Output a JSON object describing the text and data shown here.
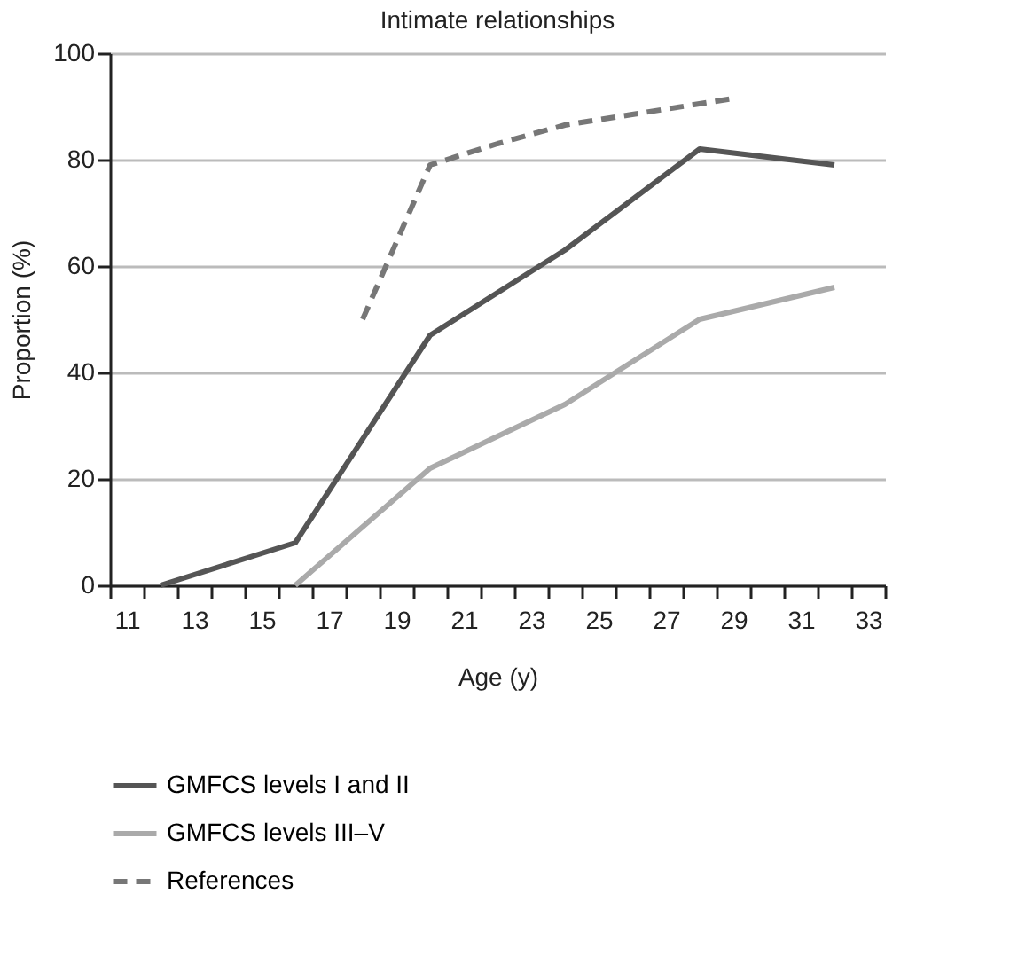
{
  "chart_data": {
    "type": "line",
    "title": "Intimate relationships",
    "xlabel": "Age (y)",
    "ylabel": "Proportion (%)",
    "xlim": [
      10.5,
      33.5
    ],
    "xticks": [
      {
        "value": 10.5,
        "label": null
      },
      {
        "value": 11,
        "label": "11"
      },
      {
        "value": 11.5,
        "label": null
      },
      {
        "value": 12.5,
        "label": null
      },
      {
        "value": 13,
        "label": "13"
      },
      {
        "value": 13.5,
        "label": null
      },
      {
        "value": 14.5,
        "label": null
      },
      {
        "value": 15,
        "label": "15"
      },
      {
        "value": 15.5,
        "label": null
      },
      {
        "value": 16.5,
        "label": null
      },
      {
        "value": 17,
        "label": "17"
      },
      {
        "value": 17.5,
        "label": null
      },
      {
        "value": 18.5,
        "label": null
      },
      {
        "value": 19,
        "label": "19"
      },
      {
        "value": 19.5,
        "label": null
      },
      {
        "value": 20.5,
        "label": null
      },
      {
        "value": 21,
        "label": "21"
      },
      {
        "value": 21.5,
        "label": null
      },
      {
        "value": 22.5,
        "label": null
      },
      {
        "value": 23,
        "label": "23"
      },
      {
        "value": 23.5,
        "label": null
      },
      {
        "value": 24.5,
        "label": null
      },
      {
        "value": 25,
        "label": "25"
      },
      {
        "value": 25.5,
        "label": null
      },
      {
        "value": 26.5,
        "label": null
      },
      {
        "value": 27,
        "label": "27"
      },
      {
        "value": 27.5,
        "label": null
      },
      {
        "value": 28.5,
        "label": null
      },
      {
        "value": 29,
        "label": "29"
      },
      {
        "value": 29.5,
        "label": null
      },
      {
        "value": 30.5,
        "label": null
      },
      {
        "value": 31,
        "label": "31"
      },
      {
        "value": 31.5,
        "label": null
      },
      {
        "value": 32.5,
        "label": null
      },
      {
        "value": 33,
        "label": "33"
      },
      {
        "value": 33.5,
        "label": null
      }
    ],
    "ylim": [
      0,
      100
    ],
    "yticks": [
      0,
      20,
      40,
      60,
      80,
      100
    ],
    "grid": "y",
    "legend": "bottom",
    "marker": "none",
    "series": [
      {
        "name": "GMFCS levels I and II",
        "color": "#555555",
        "line_style": "solid",
        "x": [
          12,
          16,
          20,
          24,
          28,
          32
        ],
        "values": [
          0,
          8,
          47,
          63,
          82,
          79
        ]
      },
      {
        "name": "GMFCS levels III–V",
        "color": "#aaaaaa",
        "line_style": "solid",
        "x": [
          16,
          20,
          24,
          28,
          32
        ],
        "values": [
          0,
          22,
          34,
          50,
          56
        ]
      },
      {
        "name": "References",
        "color": "#777777",
        "line_style": "dashed",
        "x": [
          18,
          20,
          22,
          24,
          26,
          29
        ],
        "values": [
          50,
          79,
          83,
          86.5,
          88.5,
          91.5
        ]
      }
    ]
  }
}
